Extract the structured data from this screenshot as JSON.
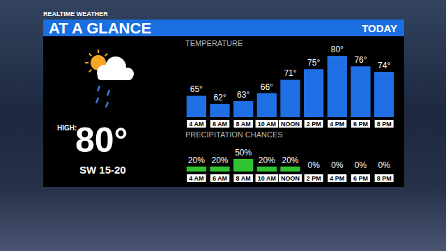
{
  "header": {
    "brand": "REALTIME WEATHER",
    "title": "AT A GLANCE",
    "period": "TODAY"
  },
  "summary": {
    "high_label": "HIGH:",
    "high": "80°",
    "wind": "SW 15-20"
  },
  "chart_data": [
    {
      "type": "bar",
      "title": "TEMPERATURE",
      "categories": [
        "4 AM",
        "6 AM",
        "8 AM",
        "10 AM",
        "NOON",
        "2 PM",
        "4 PM",
        "6 PM",
        "8 PM"
      ],
      "values": [
        65,
        62,
        63,
        66,
        71,
        75,
        80,
        76,
        74
      ],
      "value_labels": [
        "65°",
        "62°",
        "63°",
        "66°",
        "71°",
        "75°",
        "80°",
        "76°",
        "74°"
      ],
      "color": "#1f6fe5",
      "ylim": [
        57,
        80
      ],
      "data_labels": true,
      "tick_labels": "x",
      "grid": false
    },
    {
      "type": "bar",
      "title": "PRECIPITATION CHANCES",
      "categories": [
        "4 AM",
        "6 AM",
        "8 AM",
        "10 AM",
        "NOON",
        "2 PM",
        "4 PM",
        "6 PM",
        "8 PM"
      ],
      "values": [
        20,
        20,
        50,
        20,
        20,
        0,
        0,
        0,
        0
      ],
      "value_labels": [
        "20%",
        "20%",
        "50%",
        "20%",
        "20%",
        "0%",
        "0%",
        "0%",
        "0%"
      ],
      "color": "#2fc42f",
      "ylim": [
        0,
        50
      ],
      "data_labels": true,
      "tick_labels": "x",
      "grid": false
    }
  ]
}
